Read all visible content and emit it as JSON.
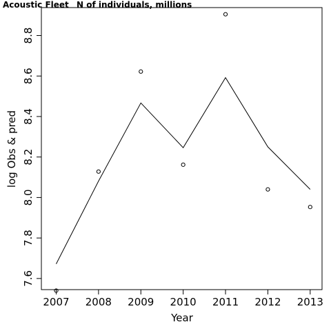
{
  "chart_data": {
    "type": "scatter",
    "title": "Acoustic Fleet",
    "subtitle": "N of individuals, millions",
    "xlabel": "Year",
    "ylabel": "log Obs & pred",
    "xlim": [
      2006.65,
      2013.28
    ],
    "ylim": [
      7.545,
      8.938
    ],
    "x_ticks": [
      2007,
      2008,
      2009,
      2010,
      2011,
      2012,
      2013
    ],
    "y_ticks": [
      7.6,
      7.8,
      8.0,
      8.2,
      8.4,
      8.6,
      8.8
    ],
    "y_tick_labels": [
      "7.6",
      "7.8",
      "8.0",
      "8.2",
      "8.4",
      "8.6",
      "8.8"
    ],
    "grid": false,
    "series": [
      {
        "kind": "points",
        "marker": "open-circle",
        "x": [
          2007,
          2008,
          2009,
          2010,
          2011,
          2012,
          2013
        ],
        "y": [
          7.54,
          8.128,
          8.622,
          8.162,
          8.905,
          8.04,
          7.953
        ]
      },
      {
        "kind": "line",
        "x": [
          2007,
          2008,
          2009,
          2010,
          2011,
          2012,
          2013
        ],
        "y": [
          7.672,
          8.081,
          8.467,
          8.246,
          8.592,
          8.25,
          8.04
        ]
      }
    ]
  }
}
